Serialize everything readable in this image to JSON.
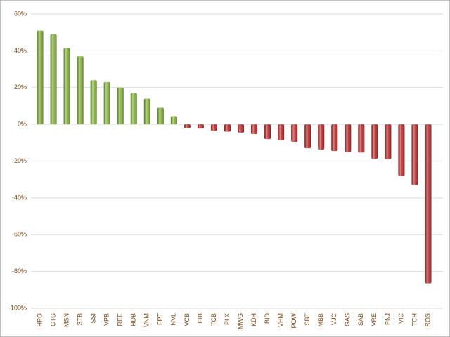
{
  "chart_data": {
    "type": "bar",
    "categories": [
      "HPG",
      "CTG",
      "MSN",
      "STB",
      "SSI",
      "VPB",
      "REE",
      "HDB",
      "VNM",
      "FPT",
      "NVL",
      "VCB",
      "EIB",
      "TCB",
      "PLX",
      "MWG",
      "KDH",
      "BID",
      "VHM",
      "POW",
      "SBT",
      "MBB",
      "VJC",
      "GAS",
      "SAB",
      "VRE",
      "PNJ",
      "VIC",
      "TCH",
      "ROS"
    ],
    "values": [
      51,
      49,
      41.5,
      37,
      24,
      23,
      20,
      17,
      14,
      9,
      4.5,
      -2,
      -2.3,
      -3.5,
      -4,
      -4.5,
      -5.3,
      -8,
      -8.7,
      -9.5,
      -13,
      -13.7,
      -14.5,
      -15,
      -15.3,
      -18.7,
      -19,
      -28,
      -33,
      -86.5
    ],
    "positive_color": "#7fae35",
    "negative_color": "#b8282a",
    "ylim": [
      -100,
      60
    ],
    "yticks": [
      {
        "value": -100,
        "label": "-100%"
      },
      {
        "value": -80,
        "label": "-80%"
      },
      {
        "value": -60,
        "label": "-60%"
      },
      {
        "value": -40,
        "label": "-40%"
      },
      {
        "value": -20,
        "label": "-20%"
      },
      {
        "value": 0,
        "label": "0%"
      },
      {
        "value": 20,
        "label": "20%"
      },
      {
        "value": 40,
        "label": "40%"
      },
      {
        "value": 60,
        "label": "60%"
      }
    ],
    "grid": true
  }
}
